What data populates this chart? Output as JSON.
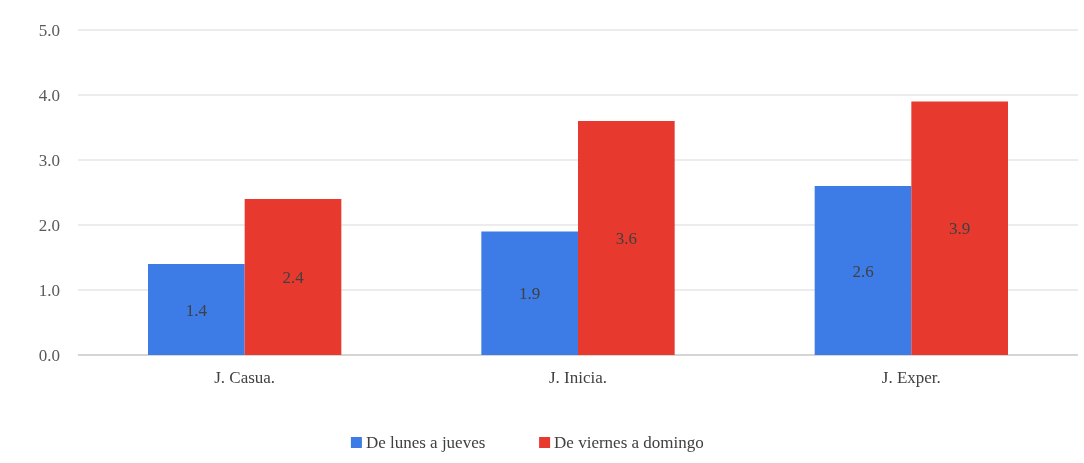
{
  "chart_data": {
    "type": "bar",
    "categories": [
      "J. Casua.",
      "J. Inicia.",
      "J. Exper."
    ],
    "series": [
      {
        "name": "De lunes a jueves",
        "color": "#3d7ce6",
        "values": [
          1.4,
          1.9,
          2.6
        ]
      },
      {
        "name": "De viernes a domingo",
        "color": "#e8392f",
        "values": [
          2.4,
          3.6,
          3.9
        ]
      }
    ],
    "ylim": [
      0,
      5
    ],
    "yticks": [
      {
        "value": 0,
        "label": "0.0"
      },
      {
        "value": 1,
        "label": "1.0"
      },
      {
        "value": 2,
        "label": "2.0"
      },
      {
        "value": 3,
        "label": "3.0"
      },
      {
        "value": 4,
        "label": "4.0"
      },
      {
        "value": 5,
        "label": "5.0"
      }
    ],
    "grid": "y",
    "data_labels": true,
    "legend": "bottom"
  }
}
